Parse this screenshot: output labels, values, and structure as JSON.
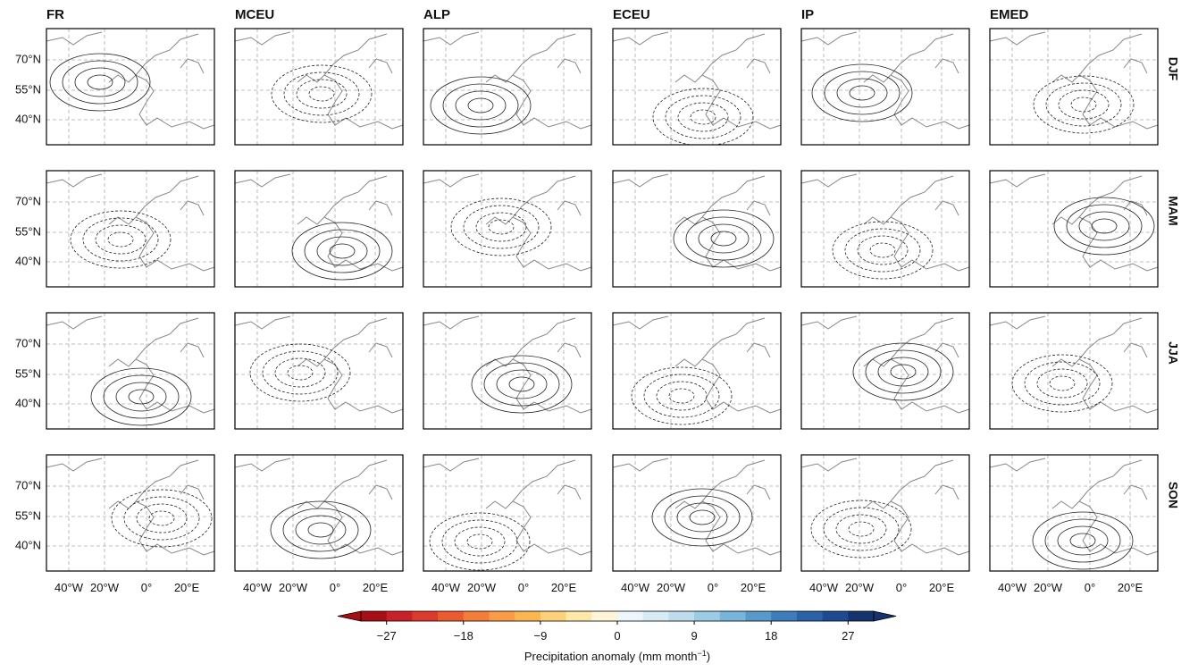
{
  "columns": [
    "FR",
    "MCEU",
    "ALP",
    "ECEU",
    "IP",
    "EMED"
  ],
  "rows": [
    "DJF",
    "MAM",
    "JJA",
    "SON"
  ],
  "lat_labels": [
    "70°N",
    "55°N",
    "40°N"
  ],
  "lon_labels": [
    "40°W",
    "20°W",
    "0°",
    "20°E"
  ],
  "colorbar": {
    "clim": [
      -30,
      30
    ],
    "ticks": [
      {
        "value": -27,
        "label": "−27"
      },
      {
        "value": -18,
        "label": "−18"
      },
      {
        "value": -9,
        "label": "−9"
      },
      0,
      9,
      18,
      27
    ],
    "label": "Precipitation anomaly (mm month",
    "label_sup": "−1",
    "label_end": ")",
    "colors": [
      "#a50f15",
      "#c9202a",
      "#dc3a2c",
      "#ec5a32",
      "#f57d3a",
      "#f99c45",
      "#fcb650",
      "#fdd07a",
      "#fee8a8",
      "#fff6d8",
      "#eef6fb",
      "#d7ebf5",
      "#bddcee",
      "#9ccbe5",
      "#79b5da",
      "#5799cb",
      "#3d7dbb",
      "#2b62a8",
      "#1e4a92",
      "#14336f"
    ]
  }
}
